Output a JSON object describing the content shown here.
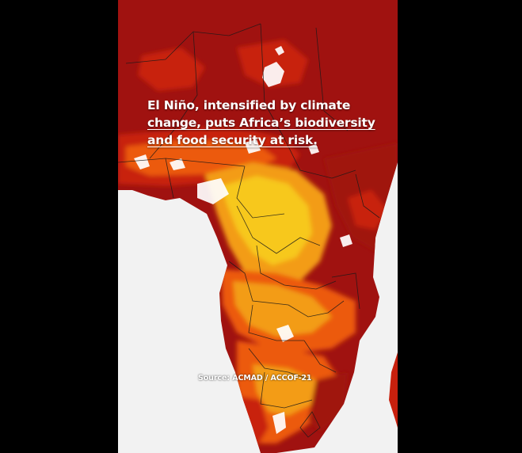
{
  "headline": {
    "line1": "El Niño, intensified by climate",
    "line2": "change, puts Africa’s biodiversity",
    "line3": "and food security at risk."
  },
  "source": "Source: ACMAD / ACCOF-21",
  "colors": {
    "dark_red": "#a01210",
    "red": "#c8200d",
    "orange": "#ec5a0c",
    "amber": "#f39c12",
    "yellow": "#f7c81c",
    "ocean": "#f2f2f2",
    "letterbox": "#000000"
  }
}
